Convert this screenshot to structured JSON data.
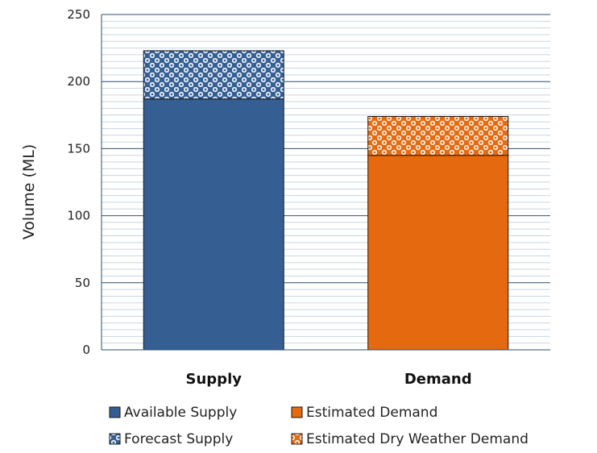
{
  "chart_data": {
    "type": "bar",
    "stacked": true,
    "categories": [
      "Supply",
      "Demand"
    ],
    "ylabel": "Volume (ML)",
    "xlabel": "",
    "ylim": [
      0,
      250
    ],
    "y_ticks": [
      0,
      50,
      100,
      150,
      200,
      250
    ],
    "grid": true,
    "legend_position": "bottom",
    "series": [
      {
        "name": "Available Supply",
        "values": [
          187,
          null
        ],
        "color": "#355E92",
        "pattern": "solid"
      },
      {
        "name": "Forecast Supply",
        "values": [
          36,
          null
        ],
        "color": "#355E92",
        "pattern": "dotted"
      },
      {
        "name": "Estimated Demand",
        "values": [
          null,
          145
        ],
        "color": "#E5690F",
        "pattern": "solid"
      },
      {
        "name": "Estimated Dry Weather Demand",
        "values": [
          null,
          29
        ],
        "color": "#E5690F",
        "pattern": "dotted"
      }
    ]
  }
}
